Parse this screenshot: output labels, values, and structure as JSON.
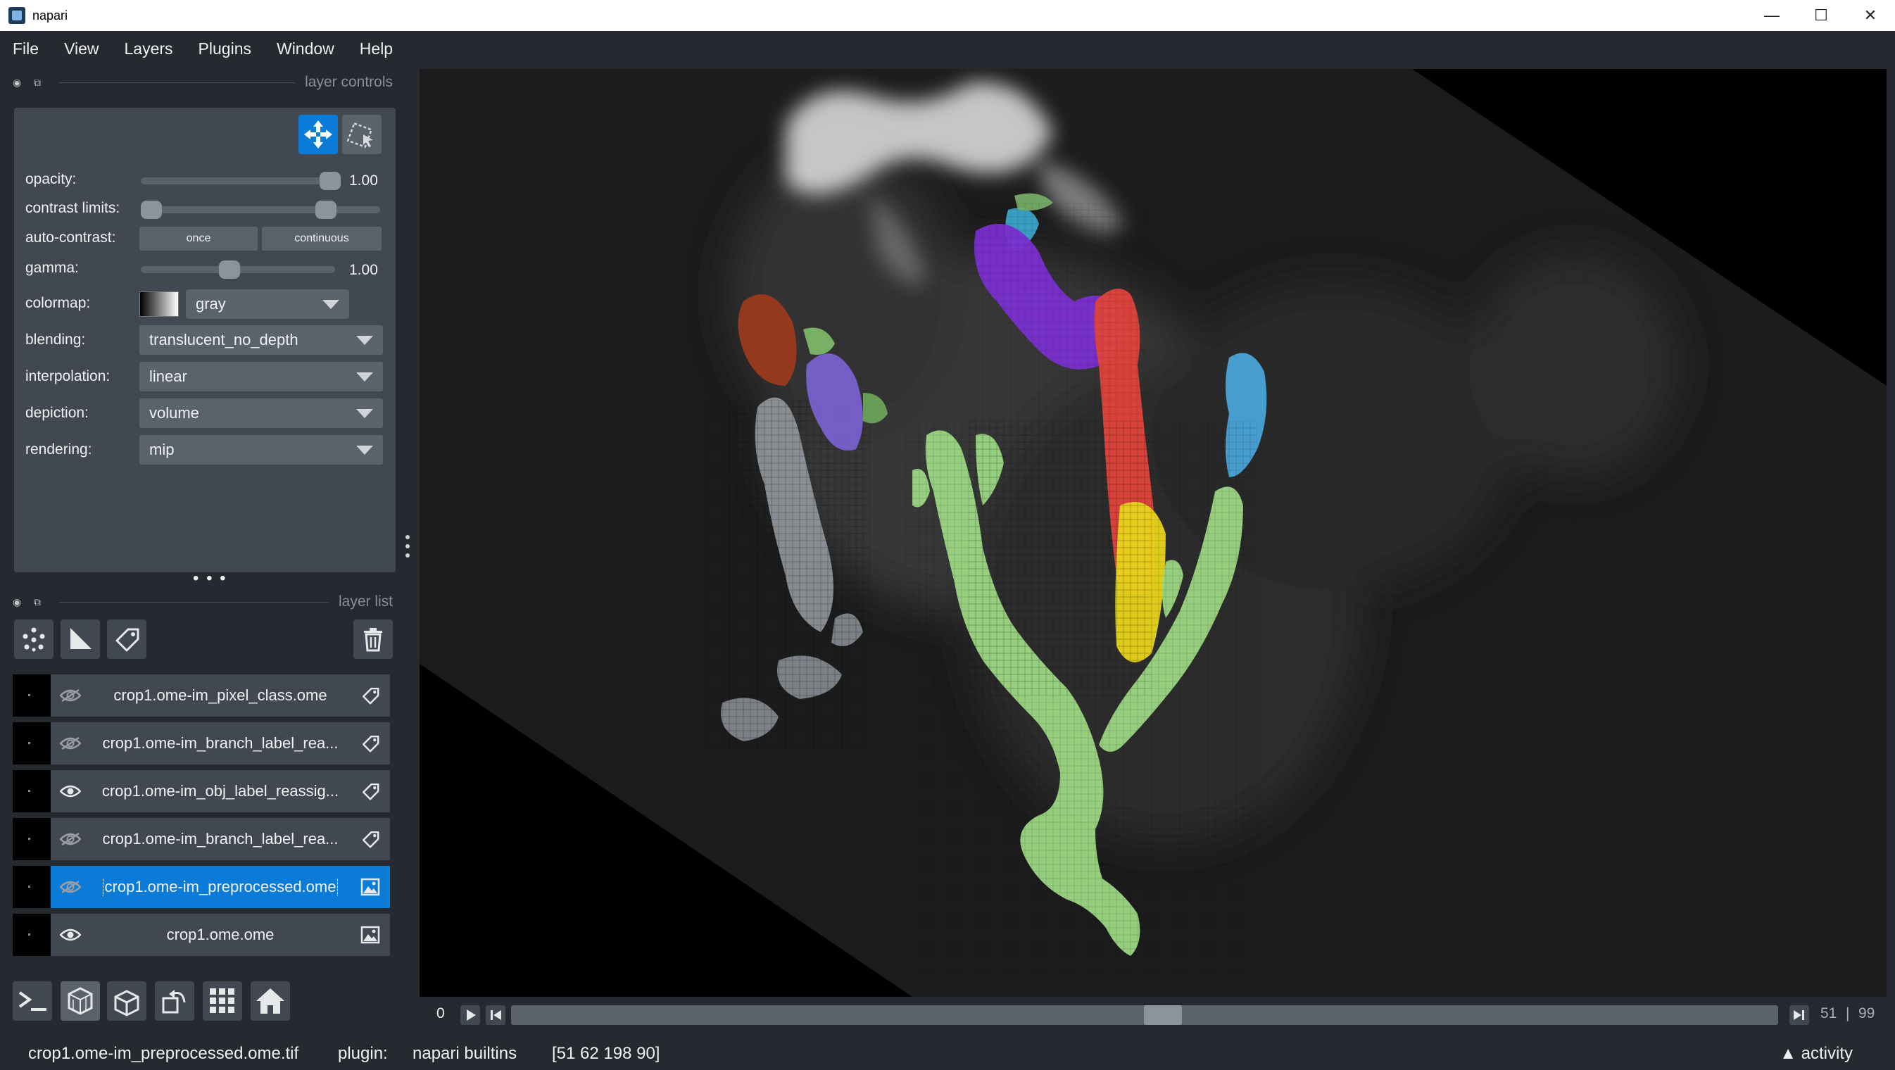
{
  "window": {
    "title": "napari",
    "minimize": "—",
    "maximize": "☐",
    "close": "✕"
  },
  "menu": [
    "File",
    "View",
    "Layers",
    "Plugins",
    "Window",
    "Help"
  ],
  "layer_controls": {
    "dock_title": "layer controls",
    "opacity_label": "opacity:",
    "opacity_value": "1.00",
    "opacity_level": 1.0,
    "contrast_label": "contrast limits:",
    "contrast_range": [
      0.0,
      0.8
    ],
    "autocontrast_label": "auto-contrast:",
    "once_label": "once",
    "continuous_label": "continuous",
    "gamma_label": "gamma:",
    "gamma_value": "1.00",
    "gamma_level": 0.45,
    "colormap_label": "colormap:",
    "colormap_value": "gray",
    "blending_label": "blending:",
    "blending_value": "translucent_no_depth",
    "interpolation_label": "interpolation:",
    "interpolation_value": "linear",
    "depiction_label": "depiction:",
    "depiction_value": "volume",
    "rendering_label": "rendering:",
    "rendering_value": "mip"
  },
  "layer_list": {
    "dock_title": "layer list",
    "layers": [
      {
        "name": "crop1.ome-im_pixel_class.ome",
        "visible": false,
        "type": "labels",
        "selected": false
      },
      {
        "name": "crop1.ome-im_branch_label_rea...",
        "visible": false,
        "type": "labels",
        "selected": false
      },
      {
        "name": "crop1.ome-im_obj_label_reassig...",
        "visible": true,
        "type": "labels",
        "selected": false
      },
      {
        "name": "crop1.ome-im_branch_label_rea...",
        "visible": false,
        "type": "labels",
        "selected": false
      },
      {
        "name": "crop1.ome-im_preprocessed.ome",
        "visible": false,
        "type": "image",
        "selected": true
      },
      {
        "name": "crop1.ome.ome",
        "visible": true,
        "type": "image",
        "selected": false
      }
    ]
  },
  "dims": {
    "axis": "0",
    "current": "51",
    "separator": "|",
    "total": "99",
    "position": 0.515
  },
  "status": {
    "layer": "crop1.ome-im_preprocessed.ome.tif",
    "plugin_label": "plugin:",
    "plugin_value": "napari builtins",
    "coords": "[51 62 198 90]",
    "activity": "▲ activity"
  },
  "colors": {
    "background": "#262930",
    "panel": "#414851",
    "accent": "#0a7bd6",
    "label_green": "#9fdc86",
    "label_red": "#e0443c",
    "label_purple": "#7a2fd0",
    "label_yellow": "#e8d41a",
    "label_blue": "#4aa3d8",
    "label_brown": "#9a3a1c"
  }
}
